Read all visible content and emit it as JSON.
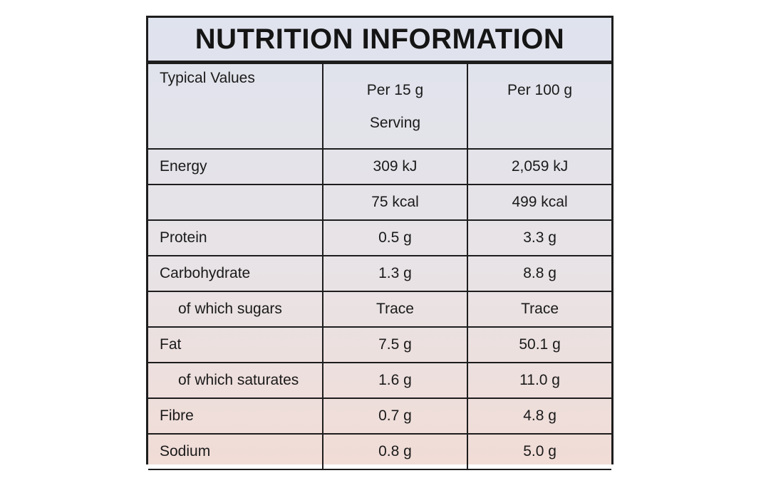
{
  "title": "NUTRITION INFORMATION",
  "header": {
    "name": "Typical Values",
    "col1_line1": "Per  15 g",
    "col1_line2": "Serving",
    "col2": "Per 100 g"
  },
  "rows": [
    {
      "name": "Energy",
      "per_serving": "309  kJ",
      "per_100g": "2,059  kJ",
      "indent": false
    },
    {
      "name": "",
      "per_serving": "75  kcal",
      "per_100g": "499  kcal",
      "indent": false
    },
    {
      "name": "Protein",
      "per_serving": "0.5  g",
      "per_100g": "3.3  g",
      "indent": false
    },
    {
      "name": "Carbohydrate",
      "per_serving": "1.3  g",
      "per_100g": "8.8  g",
      "indent": false
    },
    {
      "name": "of which sugars",
      "per_serving": "Trace",
      "per_100g": "Trace",
      "indent": true
    },
    {
      "name": "Fat",
      "per_serving": "7.5  g",
      "per_100g": "50.1  g",
      "indent": false
    },
    {
      "name": "of which saturates",
      "per_serving": "1.6  g",
      "per_100g": "11.0  g",
      "indent": true
    },
    {
      "name": "Fibre",
      "per_serving": "0.7  g",
      "per_100g": "4.8  g",
      "indent": false
    },
    {
      "name": "Sodium",
      "per_serving": "0.8  g",
      "per_100g": "5.0  g",
      "indent": false
    }
  ]
}
